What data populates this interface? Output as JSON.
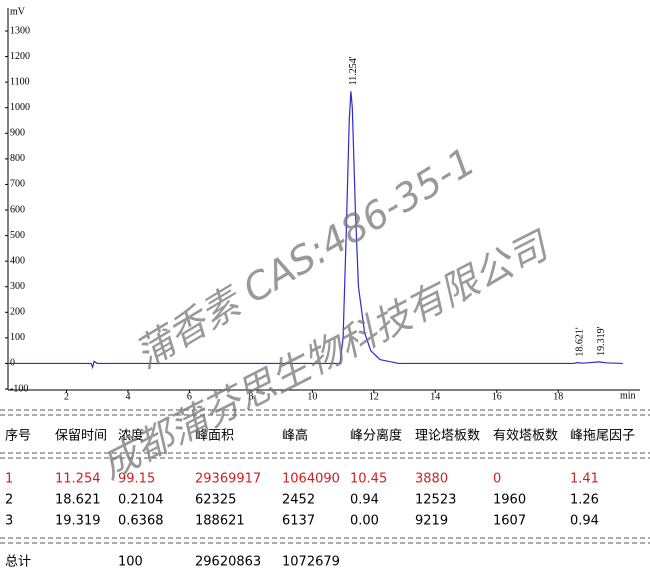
{
  "chart_data": {
    "type": "line",
    "y_label": "mV",
    "x_label": "min",
    "x": [
      0.1,
      1.0,
      2.0,
      2.8,
      2.85,
      2.9,
      3.0,
      5.0,
      8.0,
      10.5,
      10.9,
      11.0,
      11.1,
      11.2,
      11.254,
      11.3,
      11.4,
      11.5,
      11.7,
      11.9,
      12.2,
      12.8,
      15.0,
      18.5,
      18.621,
      18.8,
      19.319,
      19.6,
      20.1
    ],
    "series": [
      {
        "name": "signal",
        "color": "#2b2bd0",
        "values": [
          0,
          0,
          0,
          0,
          -15,
          8,
          0,
          0,
          0,
          0,
          0,
          100,
          500,
          950,
          1064,
          1000,
          600,
          300,
          120,
          50,
          15,
          0,
          0,
          0,
          3,
          1,
          6,
          2,
          0
        ]
      }
    ],
    "xlim": [
      0,
      20.4
    ],
    "ylim": [
      -100,
      1300
    ],
    "xticks": [
      2,
      4,
      6,
      8,
      10,
      12,
      14,
      16,
      18
    ],
    "yticks": [
      -100,
      0,
      100,
      200,
      300,
      400,
      500,
      600,
      700,
      800,
      900,
      1000,
      1100,
      1200,
      1300
    ],
    "annotations": [
      {
        "text": "11.254'",
        "x": 11.254
      },
      {
        "text": "18.621'",
        "x": 18.621
      },
      {
        "text": "19.319'",
        "x": 19.319
      }
    ]
  },
  "table": {
    "header": [
      "序号",
      "保留时间",
      "浓度",
      "峰面积",
      "峰高",
      "峰分离度",
      "理论塔板数",
      "有效塔板数",
      "峰拖尾因子"
    ],
    "rows": [
      [
        "1",
        "11.254",
        "99.15",
        "29369917",
        "1064090",
        "10.45",
        "3880",
        "0",
        "1.41"
      ],
      [
        "2",
        "18.621",
        "0.2104",
        "62325",
        "2452",
        "0.94",
        "12523",
        "1960",
        "1.26"
      ],
      [
        "3",
        "19.319",
        "0.6368",
        "188621",
        "6137",
        "0.00",
        "9219",
        "1607",
        "0.94"
      ]
    ],
    "total": {
      "label": "总计",
      "values": [
        "100",
        "29620863",
        "1072679"
      ]
    }
  },
  "watermark": [
    "蒲香素 CAS:486-35-1",
    "成都蒲芬思生物科技有限公司"
  ]
}
